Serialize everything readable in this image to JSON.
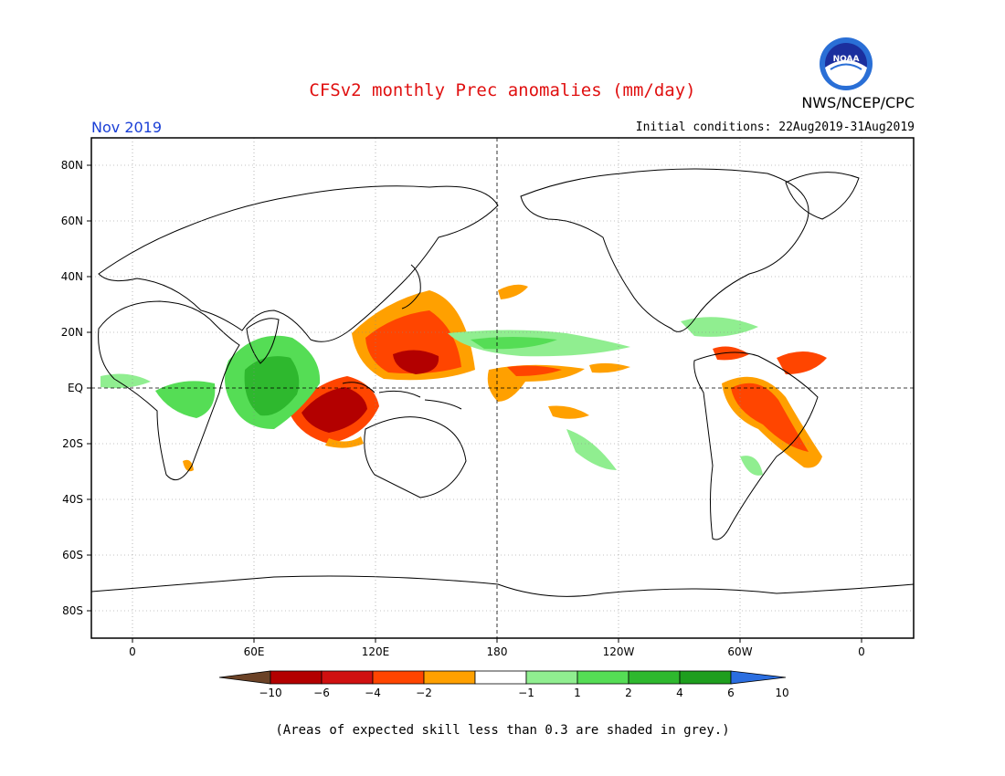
{
  "header": {
    "title": "CFSv2 monthly Prec anomalies (mm/day)",
    "agency": "NWS/NCEP/CPC",
    "month": "Nov 2019",
    "initial_conditions": "Initial conditions: 22Aug2019-31Aug2019",
    "logo_text": "NOAA"
  },
  "map": {
    "lat_ticks": [
      "80N",
      "60N",
      "40N",
      "20N",
      "EQ",
      "20S",
      "40S",
      "60S",
      "80S"
    ],
    "lon_ticks": [
      "0",
      "60E",
      "120E",
      "180",
      "120W",
      "60W",
      "0"
    ],
    "colors": {
      "dry_extreme": "#6b4226",
      "dry_strong": "#b30000",
      "dry_mod": "#d01010",
      "dry_weak": "#ff4500",
      "dry_slight": "#ffa000",
      "neutral": "#ffffff",
      "wet_slight": "#90ee90",
      "wet_weak": "#55dd55",
      "wet_mod": "#2eb82e",
      "wet_strong": "#1e9e1e",
      "wet_extreme": "#2b6ee0"
    }
  },
  "colorbar": {
    "labels": [
      "−10",
      "−6",
      "−4",
      "−2",
      "−1",
      "1",
      "2",
      "4",
      "6",
      "10"
    ],
    "colors": [
      "#b30000",
      "#d01010",
      "#ff4500",
      "#ffa000",
      "#ffffff",
      "#90ee90",
      "#55dd55",
      "#2eb82e",
      "#1e9e1e"
    ],
    "low_arrow_color": "#6b4226",
    "high_arrow_color": "#2b6ee0"
  },
  "footnote": "(Areas of expected skill less than 0.3 are shaded in grey.)"
}
